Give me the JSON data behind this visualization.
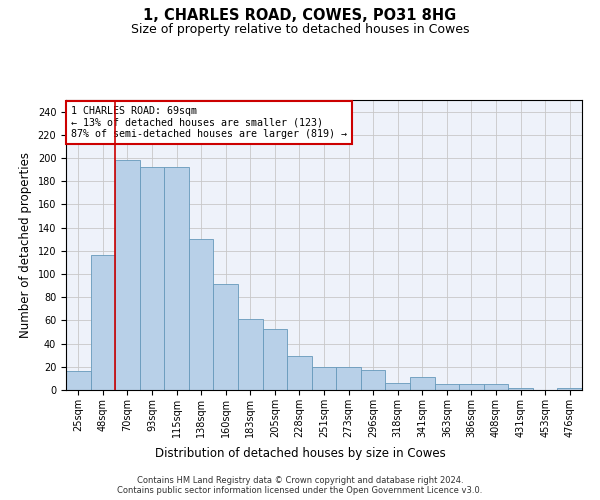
{
  "title": "1, CHARLES ROAD, COWES, PO31 8HG",
  "subtitle": "Size of property relative to detached houses in Cowes",
  "xlabel": "Distribution of detached houses by size in Cowes",
  "ylabel": "Number of detached properties",
  "categories": [
    "25sqm",
    "48sqm",
    "70sqm",
    "93sqm",
    "115sqm",
    "138sqm",
    "160sqm",
    "183sqm",
    "205sqm",
    "228sqm",
    "251sqm",
    "273sqm",
    "296sqm",
    "318sqm",
    "341sqm",
    "363sqm",
    "386sqm",
    "408sqm",
    "431sqm",
    "453sqm",
    "476sqm"
  ],
  "values": [
    16,
    116,
    198,
    192,
    192,
    130,
    91,
    61,
    53,
    29,
    20,
    20,
    17,
    6,
    11,
    5,
    5,
    5,
    2,
    0,
    2
  ],
  "bar_color": "#b8d0e8",
  "bar_edge_color": "#6699bb",
  "bar_linewidth": 0.6,
  "grid_color": "#c8c8c8",
  "background_color": "#eef2fa",
  "vline_index": 1.5,
  "vline_color": "#cc0000",
  "vline_linewidth": 1.2,
  "annotation_text": "1 CHARLES ROAD: 69sqm\n← 13% of detached houses are smaller (123)\n87% of semi-detached houses are larger (819) →",
  "annotation_box_color": "white",
  "annotation_box_edgecolor": "#cc0000",
  "annotation_fontsize": 7.2,
  "footer_line1": "Contains HM Land Registry data © Crown copyright and database right 2024.",
  "footer_line2": "Contains public sector information licensed under the Open Government Licence v3.0.",
  "ylim": [
    0,
    250
  ],
  "yticks": [
    0,
    20,
    40,
    60,
    80,
    100,
    120,
    140,
    160,
    180,
    200,
    220,
    240
  ],
  "title_fontsize": 10.5,
  "subtitle_fontsize": 9,
  "xlabel_fontsize": 8.5,
  "ylabel_fontsize": 8.5,
  "tick_fontsize": 7
}
